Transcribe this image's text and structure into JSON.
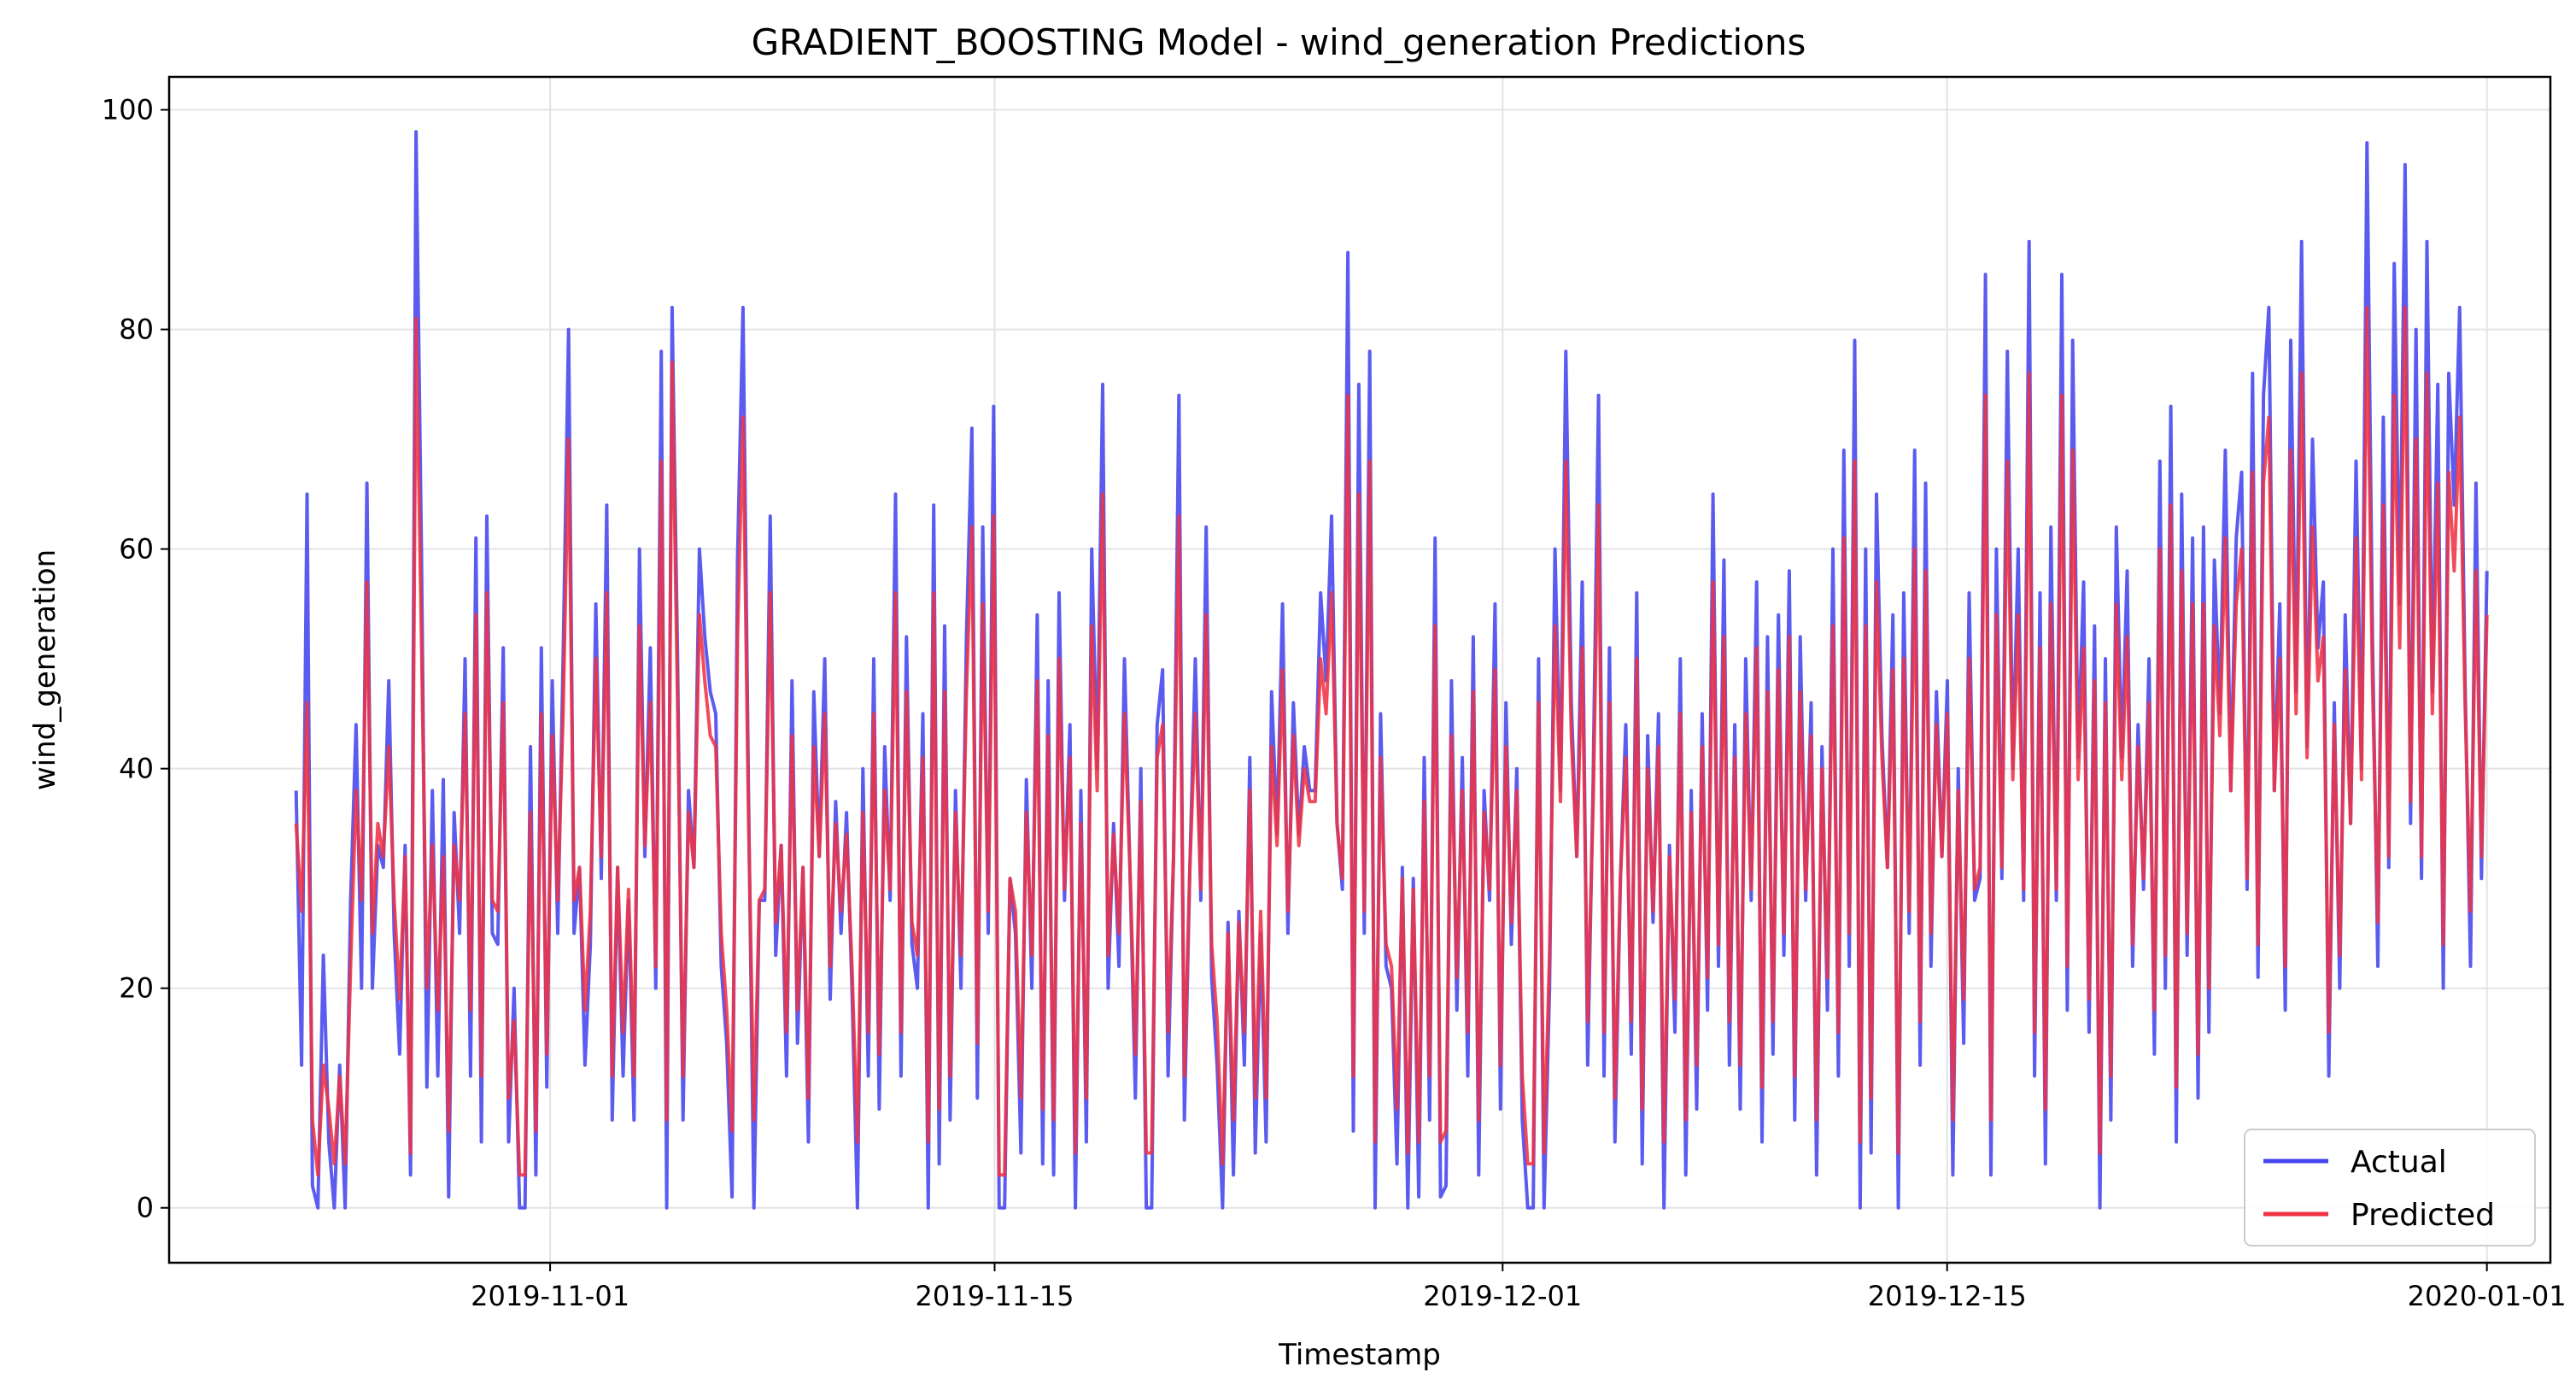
{
  "chart_data": {
    "type": "line",
    "title": "GRADIENT_BOOSTING Model - wind_generation Predictions",
    "xlabel": "Timestamp",
    "ylabel": "wind_generation",
    "x_range": [
      "2019-10-20",
      "2020-01-03"
    ],
    "ylim": [
      -5,
      103
    ],
    "x_ticks": [
      "2019-11-01",
      "2019-11-15",
      "2019-12-01",
      "2019-12-15",
      "2020-01-01"
    ],
    "y_ticks": [
      0,
      20,
      40,
      60,
      80,
      100
    ],
    "grid": true,
    "legend_position": "bottom-right",
    "x_start": "2019-10-24",
    "x_end": "2020-01-01",
    "series": [
      {
        "name": "Actual",
        "color": "#4444ee",
        "values": [
          38,
          13,
          65,
          2,
          0,
          23,
          6,
          0,
          13,
          0,
          28,
          44,
          20,
          66,
          20,
          33,
          31,
          48,
          25,
          14,
          33,
          3,
          98,
          60,
          11,
          38,
          12,
          39,
          1,
          36,
          25,
          50,
          12,
          61,
          6,
          63,
          25,
          24,
          51,
          6,
          20,
          0,
          0,
          42,
          3,
          51,
          11,
          48,
          25,
          50,
          80,
          25,
          31,
          13,
          24,
          55,
          30,
          64,
          8,
          31,
          12,
          28,
          8,
          60,
          32,
          51,
          20,
          78,
          0,
          82,
          50,
          8,
          38,
          31,
          60,
          52,
          47,
          45,
          22,
          15,
          1,
          59,
          82,
          38,
          0,
          28,
          28,
          63,
          23,
          33,
          12,
          48,
          15,
          31,
          6,
          47,
          32,
          50,
          19,
          37,
          25,
          36,
          20,
          0,
          40,
          12,
          50,
          9,
          42,
          28,
          65,
          12,
          52,
          24,
          20,
          45,
          0,
          64,
          4,
          53,
          8,
          38,
          20,
          52,
          71,
          10,
          62,
          25,
          73,
          0,
          0,
          30,
          25,
          5,
          39,
          20,
          54,
          4,
          48,
          3,
          56,
          28,
          44,
          0,
          38,
          6,
          60,
          40,
          75,
          20,
          35,
          22,
          50,
          31,
          10,
          40,
          0,
          0,
          44,
          49,
          12,
          32,
          74,
          8,
          31,
          50,
          28,
          62,
          21,
          13,
          0,
          26,
          3,
          27,
          13,
          41,
          5,
          25,
          6,
          47,
          34,
          55,
          25,
          46,
          34,
          42,
          38,
          38,
          56,
          48,
          63,
          35,
          29,
          87,
          7,
          75,
          25,
          78,
          0,
          45,
          22,
          20,
          4,
          31,
          0,
          30,
          1,
          41,
          8,
          61,
          1,
          2,
          48,
          18,
          41,
          12,
          52,
          3,
          38,
          28,
          55,
          9,
          46,
          24,
          40,
          8,
          0,
          0,
          50,
          0,
          20,
          60,
          38,
          78,
          46,
          32,
          57,
          13,
          39,
          74,
          12,
          51,
          6,
          30,
          44,
          14,
          56,
          4,
          43,
          26,
          45,
          0,
          33,
          16,
          50,
          3,
          38,
          9,
          45,
          18,
          65,
          22,
          59,
          13,
          44,
          9,
          50,
          28,
          57,
          6,
          52,
          14,
          54,
          23,
          58,
          8,
          52,
          28,
          46,
          3,
          42,
          18,
          60,
          12,
          69,
          22,
          79,
          0,
          60,
          5,
          65,
          43,
          31,
          54,
          0,
          56,
          25,
          69,
          13,
          66,
          22,
          47,
          32,
          48,
          3,
          40,
          15,
          56,
          28,
          30,
          85,
          3,
          60,
          30,
          78,
          40,
          60,
          28,
          88,
          12,
          56,
          4,
          62,
          28,
          85,
          18,
          79,
          41,
          57,
          16,
          53,
          0,
          50,
          8,
          62,
          41,
          58,
          22,
          44,
          29,
          50,
          14,
          68,
          20,
          73,
          6,
          65,
          23,
          61,
          10,
          62,
          16,
          59,
          45,
          69,
          38,
          61,
          67,
          29,
          76,
          21,
          74,
          82,
          38,
          55,
          18,
          79,
          47,
          88,
          42,
          70,
          51,
          57,
          12,
          46,
          20,
          54,
          35,
          68,
          40,
          97,
          52,
          22,
          72,
          31,
          86,
          55,
          95,
          35,
          80,
          30,
          88,
          47,
          75,
          20,
          76,
          64,
          82,
          48,
          22,
          66,
          30,
          58
        ]
      },
      {
        "name": "Predicted",
        "color": "#ee3344",
        "values": [
          35,
          27,
          46,
          8,
          3,
          13,
          9,
          4,
          12,
          4,
          22,
          38,
          28,
          57,
          25,
          35,
          32,
          42,
          28,
          19,
          32,
          5,
          81,
          52,
          20,
          33,
          18,
          32,
          7,
          33,
          28,
          45,
          18,
          54,
          12,
          56,
          28,
          27,
          46,
          10,
          17,
          3,
          3,
          36,
          7,
          45,
          14,
          43,
          28,
          45,
          70,
          28,
          31,
          18,
          27,
          50,
          32,
          56,
          12,
          31,
          16,
          29,
          12,
          53,
          33,
          46,
          22,
          68,
          8,
          77,
          46,
          12,
          36,
          31,
          54,
          48,
          43,
          42,
          25,
          18,
          7,
          52,
          72,
          36,
          8,
          28,
          29,
          56,
          26,
          33,
          16,
          43,
          18,
          31,
          10,
          42,
          32,
          45,
          22,
          35,
          27,
          34,
          22,
          6,
          36,
          16,
          45,
          14,
          38,
          29,
          56,
          16,
          47,
          26,
          23,
          41,
          6,
          56,
          9,
          47,
          12,
          36,
          23,
          47,
          62,
          15,
          55,
          27,
          63,
          3,
          3,
          30,
          27,
          10,
          36,
          23,
          48,
          9,
          43,
          8,
          50,
          29,
          41,
          5,
          35,
          10,
          53,
          38,
          65,
          23,
          34,
          25,
          45,
          31,
          14,
          37,
          5,
          5,
          41,
          44,
          16,
          32,
          63,
          12,
          31,
          45,
          29,
          54,
          24,
          17,
          4,
          25,
          8,
          26,
          16,
          38,
          10,
          27,
          10,
          42,
          33,
          49,
          27,
          43,
          33,
          40,
          37,
          37,
          50,
          45,
          56,
          35,
          30,
          74,
          12,
          65,
          27,
          68,
          6,
          41,
          24,
          22,
          9,
          30,
          5,
          29,
          6,
          37,
          12,
          53,
          6,
          7,
          43,
          21,
          38,
          16,
          47,
          8,
          36,
          29,
          49,
          13,
          42,
          26,
          38,
          12,
          4,
          4,
          46,
          5,
          23,
          53,
          37,
          68,
          43,
          32,
          51,
          17,
          37,
          64,
          16,
          46,
          10,
          30,
          41,
          17,
          50,
          9,
          40,
          27,
          42,
          6,
          32,
          19,
          45,
          8,
          36,
          13,
          42,
          21,
          57,
          24,
          52,
          17,
          41,
          13,
          45,
          29,
          51,
          11,
          47,
          17,
          49,
          25,
          52,
          12,
          47,
          29,
          43,
          8,
          40,
          21,
          53,
          16,
          61,
          25,
          68,
          6,
          53,
          10,
          57,
          41,
          31,
          49,
          5,
          50,
          27,
          60,
          17,
          58,
          25,
          44,
          32,
          45,
          8,
          38,
          19,
          50,
          29,
          31,
          74,
          8,
          54,
          31,
          68,
          39,
          54,
          29,
          76,
          16,
          51,
          9,
          55,
          29,
          74,
          22,
          69,
          39,
          51,
          19,
          48,
          5,
          46,
          12,
          55,
          39,
          52,
          24,
          42,
          30,
          46,
          18,
          60,
          23,
          64,
          11,
          58,
          25,
          55,
          14,
          55,
          20,
          53,
          43,
          61,
          38,
          55,
          60,
          30,
          67,
          24,
          66,
          72,
          38,
          50,
          22,
          69,
          45,
          76,
          41,
          62,
          48,
          52,
          16,
          44,
          23,
          49,
          35,
          61,
          39,
          82,
          48,
          26,
          64,
          32,
          74,
          51,
          82,
          37,
          70,
          32,
          76,
          45,
          66,
          24,
          67,
          58,
          72,
          46,
          27,
          58,
          32,
          54
        ]
      }
    ]
  }
}
